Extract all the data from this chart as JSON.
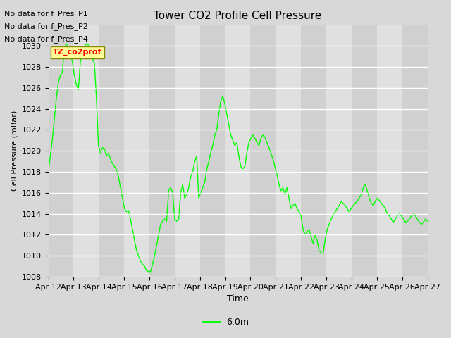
{
  "title": "Tower CO2 Profile Cell Pressure",
  "ylabel": "Cell Pressure (mBar)",
  "xlabel": "Time",
  "ylim": [
    1008,
    1032
  ],
  "yticks": [
    1008,
    1010,
    1012,
    1014,
    1016,
    1018,
    1020,
    1022,
    1024,
    1026,
    1028,
    1030
  ],
  "xtick_labels": [
    "Apr 12",
    "Apr 13",
    "Apr 14",
    "Apr 15",
    "Apr 16",
    "Apr 17",
    "Apr 18",
    "Apr 19",
    "Apr 20",
    "Apr 21",
    "Apr 22",
    "Apr 23",
    "Apr 24",
    "Apr 25",
    "Apr 26",
    "Apr 27"
  ],
  "line_color": "#00ff00",
  "line_label": "6.0m",
  "no_data_texts": [
    "No data for f_Pres_P1",
    "No data for f_Pres_P2",
    "No data for f_Pres_P4"
  ],
  "tooltip_text": "TZ_co2prof",
  "background_color": "#d8d8d8",
  "plot_bg_alt1": "#d0d0d0",
  "plot_bg_alt2": "#e0e0e0",
  "y_values": [
    1018,
    1019.5,
    1021,
    1023,
    1025,
    1026.5,
    1027.2,
    1027.5,
    1029.8,
    1030.2,
    1029.8,
    1029.3,
    1028.5,
    1027.2,
    1026.3,
    1025.8,
    1028.5,
    1029.5,
    1029.8,
    1030.2,
    1030.1,
    1029.5,
    1028.8,
    1028.3,
    1025.0,
    1020.5,
    1019.8,
    1020.3,
    1020.2,
    1019.5,
    1019.8,
    1019.2,
    1018.8,
    1018.5,
    1018.2,
    1017.5,
    1016.5,
    1015.5,
    1014.5,
    1014.2,
    1014.3,
    1013.5,
    1012.5,
    1011.5,
    1010.5,
    1010.0,
    1009.5,
    1009.2,
    1009.0,
    1008.6,
    1008.5,
    1008.5,
    1009.2,
    1010.0,
    1011.0,
    1012.0,
    1013.0,
    1013.3,
    1013.5,
    1013.3,
    1016.2,
    1016.5,
    1016.0,
    1013.5,
    1013.3,
    1013.5,
    1016.0,
    1016.8,
    1015.5,
    1015.8,
    1016.5,
    1017.5,
    1018.0,
    1019.0,
    1019.5,
    1015.5,
    1016.0,
    1016.5,
    1017.0,
    1018.2,
    1019.0,
    1019.8,
    1020.5,
    1021.5,
    1022.0,
    1023.5,
    1024.8,
    1025.2,
    1024.5,
    1023.5,
    1022.5,
    1021.5,
    1021.0,
    1020.5,
    1020.8,
    1019.5,
    1018.5,
    1018.3,
    1018.5,
    1019.8,
    1020.8,
    1021.2,
    1021.5,
    1021.2,
    1020.8,
    1020.5,
    1021.2,
    1021.5,
    1021.3,
    1020.8,
    1020.3,
    1019.8,
    1019.2,
    1018.5,
    1017.8,
    1016.8,
    1016.2,
    1016.5,
    1015.8,
    1016.5,
    1015.5,
    1014.5,
    1014.8,
    1015.0,
    1014.5,
    1014.2,
    1013.8,
    1012.5,
    1012.0,
    1012.3,
    1012.5,
    1011.8,
    1011.2,
    1012.0,
    1011.5,
    1010.5,
    1010.3,
    1010.2,
    1011.5,
    1012.5,
    1013.0,
    1013.5,
    1013.8,
    1014.2,
    1014.5,
    1014.8,
    1015.2,
    1015.0,
    1014.8,
    1014.5,
    1014.2,
    1014.5,
    1014.8,
    1015.0,
    1015.2,
    1015.5,
    1015.8,
    1016.5,
    1016.8,
    1016.2,
    1015.5,
    1015.0,
    1014.8,
    1015.2,
    1015.5,
    1015.3,
    1015.0,
    1014.8,
    1014.5,
    1014.0,
    1013.8,
    1013.5,
    1013.2,
    1013.5,
    1013.8,
    1014.0,
    1013.8,
    1013.5,
    1013.2,
    1013.3,
    1013.5,
    1013.8,
    1014.0,
    1013.8,
    1013.5,
    1013.2,
    1013.0,
    1013.2,
    1013.5,
    1013.3
  ]
}
